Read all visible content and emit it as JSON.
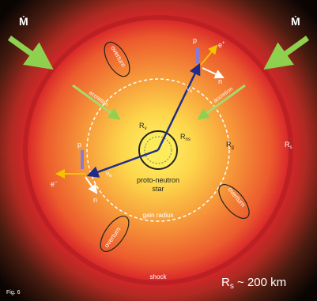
{
  "diagram": {
    "mdot": [
      "Ṁ",
      "Ṁ"
    ],
    "overturn": [
      "overturn",
      "overturn",
      "overturn"
    ],
    "accretion": [
      "accretion",
      "accretion"
    ],
    "upper_reaction": {
      "proton": "p",
      "positron": {
        "main": "e",
        "sup": "+"
      },
      "neutron": "n",
      "neutrino": {
        "main": "ν",
        "sub": "e"
      }
    },
    "left_reaction": {
      "proton": "p",
      "electron": {
        "main": "e",
        "sup": "−"
      },
      "neutron": "n",
      "neutrino": {
        "main": "ν",
        "sub": "e"
      }
    },
    "radii": {
      "r_nu": {
        "main": "R",
        "sub": "ν"
      },
      "r_ns": {
        "main": "R",
        "sub": "ns"
      },
      "r_g": {
        "main": "R",
        "sub": "g"
      },
      "r_s": {
        "main": "R",
        "sub": "s"
      }
    },
    "star_label": [
      "proto-neutron",
      "star"
    ],
    "gain_radius": "gain radius",
    "shock": "shock",
    "shock_radius": {
      "main": "R",
      "sub": "s",
      "rest": " ~ 200 km"
    },
    "figure": "Fig. 6"
  }
}
